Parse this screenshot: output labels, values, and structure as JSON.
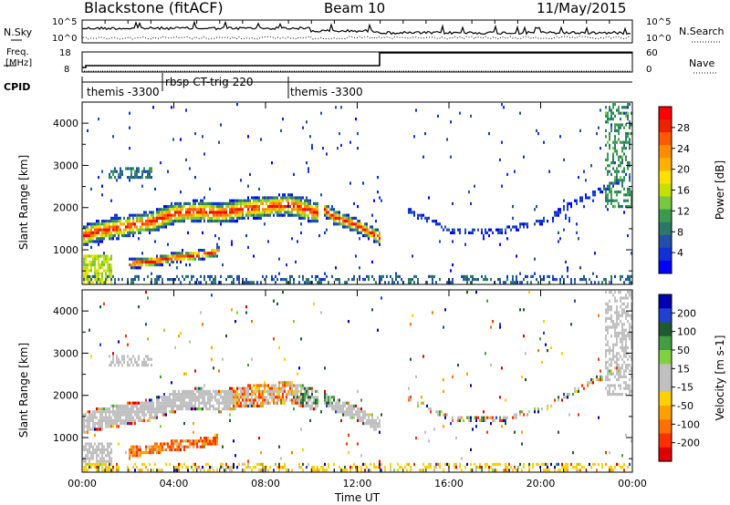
{
  "header": {
    "title": "Blackstone (fitACF)",
    "beam": "Beam 10",
    "date": "11/May/2015"
  },
  "top_panel": {
    "left_label": "N.Sky",
    "left_ticks": [
      "10^5",
      "10^0"
    ],
    "right_label": "N.Search",
    "right_ticks": [
      "10^5",
      "10^0"
    ]
  },
  "freq_panel": {
    "left_label_1": "Freq.",
    "left_label_2": "[MHz]",
    "left_ticks": [
      "18",
      "8"
    ],
    "right_label": "Nave",
    "right_ticks": [
      "60",
      "0"
    ]
  },
  "cpid": {
    "label": "CPID",
    "segments": [
      {
        "text": "themis -3300"
      },
      {
        "text": "rbsp CT-trig 220"
      },
      {
        "text": "themis -3300"
      }
    ]
  },
  "chart_data": [
    {
      "type": "heatmap",
      "quantity": "Power",
      "ylabel": "Slant Range [km]",
      "ylim": [
        180,
        4500
      ],
      "yticks": [
        "1000",
        "2000",
        "3000",
        "4000"
      ],
      "xlim": [
        "00:00",
        "24:00"
      ],
      "colorbar": {
        "label": "Power [dB]",
        "ticks": [
          "28",
          "24",
          "20",
          "16",
          "12",
          "8",
          "4"
        ],
        "colors": [
          "#ff0000",
          "#ee2000",
          "#ff5a00",
          "#ff8c00",
          "#ffb000",
          "#ffe000",
          "#c8e000",
          "#78c840",
          "#3a9a50",
          "#2a7868",
          "#2050a8",
          "#1030d8",
          "#0000ff"
        ]
      },
      "features": [
        {
          "name": "main echo band",
          "t": [
            0,
            0.5,
            1,
            2,
            3,
            4,
            5,
            6,
            7,
            8,
            9,
            10.3
          ],
          "range": [
            1350,
            1450,
            1500,
            1600,
            1700,
            1900,
            1950,
            1900,
            2000,
            2050,
            2100,
            1900
          ]
        },
        {
          "name": "lower band",
          "t": [
            2,
            3,
            4,
            5,
            6
          ],
          "range": [
            700,
            750,
            850,
            900,
            1000
          ]
        },
        {
          "name": "post-gap band",
          "t": [
            10.5,
            11,
            12,
            13
          ],
          "range": [
            2000,
            1800,
            1600,
            1300
          ]
        },
        {
          "name": "evening arc",
          "t": [
            14,
            16,
            18,
            20,
            22,
            23.5
          ],
          "range": [
            2000,
            1500,
            1450,
            1700,
            2300,
            2700
          ]
        }
      ]
    },
    {
      "type": "heatmap",
      "quantity": "Velocity",
      "ylabel": "Slant Range [km]",
      "ylim": [
        180,
        4500
      ],
      "yticks": [
        "1000",
        "2000",
        "3000",
        "4000"
      ],
      "xlim": [
        "00:00",
        "24:00"
      ],
      "colorbar": {
        "label": "Velocity [m s-1]",
        "ticks": [
          "200",
          "100",
          "50",
          "15",
          "-15",
          "-50",
          "-100",
          "-200"
        ],
        "colors": [
          "#0000b0",
          "#2040d0",
          "#205a30",
          "#40a040",
          "#80d040",
          "#c0c0c0",
          "#c0c0c0",
          "#ffd000",
          "#ffa000",
          "#ff7000",
          "#ff3000",
          "#e00000"
        ]
      }
    }
  ],
  "x_axis": {
    "ticks": [
      "00:00",
      "04:00",
      "08:00",
      "12:00",
      "16:00",
      "20:00",
      "00:00"
    ],
    "label": "Time UT"
  }
}
